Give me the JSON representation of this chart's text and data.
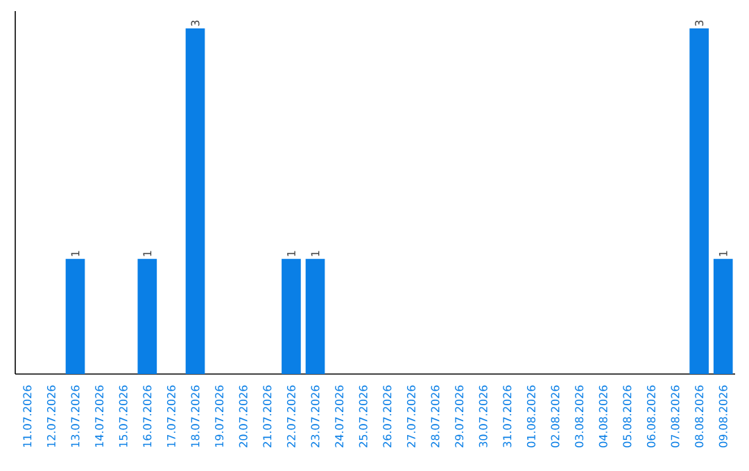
{
  "chart_data": {
    "type": "bar",
    "categories": [
      "11.07.2026",
      "12.07.2026",
      "13.07.2026",
      "14.07.2026",
      "15.07.2026",
      "16.07.2026",
      "17.07.2026",
      "18.07.2026",
      "19.07.2026",
      "20.07.2026",
      "21.07.2026",
      "22.07.2026",
      "23.07.2026",
      "24.07.2026",
      "25.07.2026",
      "26.07.2026",
      "27.07.2026",
      "28.07.2026",
      "29.07.2026",
      "30.07.2026",
      "31.07.2026",
      "01.08.2026",
      "02.08.2026",
      "03.08.2026",
      "04.08.2026",
      "05.08.2026",
      "06.08.2026",
      "07.08.2026",
      "08.08.2026",
      "09.08.2026"
    ],
    "values": [
      0,
      0,
      1,
      0,
      0,
      1,
      0,
      3,
      0,
      0,
      0,
      1,
      1,
      0,
      0,
      0,
      0,
      0,
      0,
      0,
      0,
      0,
      0,
      0,
      0,
      0,
      0,
      0,
      3,
      1
    ],
    "value_labels": [
      null,
      null,
      "1",
      null,
      null,
      "1",
      null,
      "3",
      null,
      null,
      null,
      "1",
      "1",
      null,
      null,
      null,
      null,
      null,
      null,
      null,
      null,
      null,
      null,
      null,
      null,
      null,
      null,
      null,
      "3",
      "1"
    ],
    "color": "#0a7fe6"
  }
}
